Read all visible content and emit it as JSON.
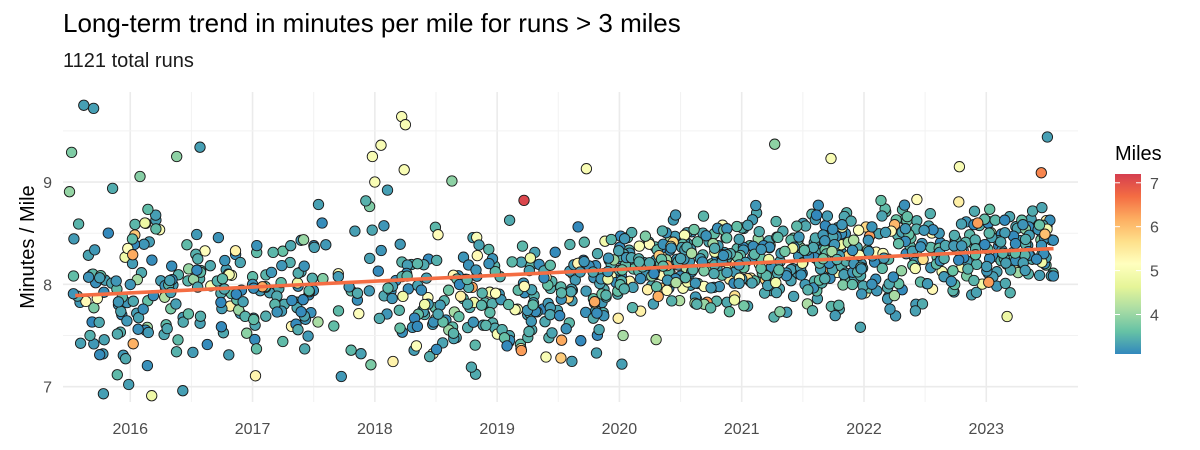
{
  "chart_data": {
    "type": "scatter",
    "title": "Long-term trend in minutes per mile for runs > 3 miles",
    "subtitle": "1121 total runs",
    "xlabel": "",
    "ylabel": "Minutes / Mile",
    "x_ticks": [
      "2016",
      "2017",
      "2018",
      "2019",
      "2020",
      "2021",
      "2022",
      "2023"
    ],
    "x_tick_values": [
      2016,
      2017,
      2018,
      2019,
      2020,
      2021,
      2022,
      2023
    ],
    "y_ticks": [
      "7",
      "8",
      "9"
    ],
    "y_tick_values": [
      7,
      8,
      9
    ],
    "xlim": [
      2015.45,
      2023.75
    ],
    "ylim": [
      6.85,
      9.88
    ],
    "grid": true,
    "legend": {
      "title": "Miles",
      "position": "right",
      "ticks": [
        "4",
        "5",
        "6",
        "7"
      ],
      "tick_values": [
        4,
        5,
        6,
        7
      ],
      "range": [
        3.1,
        7.2
      ],
      "colors": [
        "#3288bd",
        "#66c2a5",
        "#abdda4",
        "#e6f598",
        "#ffffbf",
        "#fee08b",
        "#fdae61",
        "#f46d43",
        "#d53e4f"
      ]
    },
    "trend_line": {
      "color": "#f46d43",
      "x": [
        2015.55,
        2023.55
      ],
      "y": [
        7.89,
        8.35
      ]
    },
    "point_count": 1121,
    "labeled_outliers": [
      {
        "x": 2015.62,
        "y": 9.75,
        "miles": 3.3
      },
      {
        "x": 2015.7,
        "y": 9.72,
        "miles": 3.3
      },
      {
        "x": 2015.52,
        "y": 9.29,
        "miles": 3.8
      },
      {
        "x": 2016.38,
        "y": 9.25,
        "miles": 3.9
      },
      {
        "x": 2016.57,
        "y": 9.34,
        "miles": 3.3
      },
      {
        "x": 2016.43,
        "y": 6.96,
        "miles": 3.3
      },
      {
        "x": 2015.78,
        "y": 6.93,
        "miles": 3.3
      },
      {
        "x": 2015.98,
        "y": 8.35,
        "miles": 5.1
      },
      {
        "x": 2016.02,
        "y": 8.29,
        "miles": 6.2
      },
      {
        "x": 2016.12,
        "y": 8.6,
        "miles": 4.8
      },
      {
        "x": 2018.22,
        "y": 9.64,
        "miles": 5.0
      },
      {
        "x": 2018.25,
        "y": 9.56,
        "miles": 5.0
      },
      {
        "x": 2018.05,
        "y": 9.36,
        "miles": 5.0
      },
      {
        "x": 2017.98,
        "y": 9.25,
        "miles": 5.0
      },
      {
        "x": 2018.24,
        "y": 9.12,
        "miles": 5.0
      },
      {
        "x": 2018.0,
        "y": 9.0,
        "miles": 5.0
      },
      {
        "x": 2018.63,
        "y": 9.01,
        "miles": 3.9
      },
      {
        "x": 2019.22,
        "y": 8.82,
        "miles": 7.1
      },
      {
        "x": 2019.73,
        "y": 9.13,
        "miles": 5.0
      },
      {
        "x": 2021.27,
        "y": 9.37,
        "miles": 3.9
      },
      {
        "x": 2021.73,
        "y": 9.23,
        "miles": 5.0
      },
      {
        "x": 2022.78,
        "y": 9.15,
        "miles": 5.0
      },
      {
        "x": 2022.93,
        "y": 8.6,
        "miles": 6.3
      },
      {
        "x": 2023.02,
        "y": 8.02,
        "miles": 6.3
      },
      {
        "x": 2023.45,
        "y": 9.09,
        "miles": 6.5
      },
      {
        "x": 2023.5,
        "y": 9.44,
        "miles": 3.3
      },
      {
        "x": 2019.4,
        "y": 7.29,
        "miles": 5.0
      },
      {
        "x": 2020.02,
        "y": 7.22,
        "miles": 3.3
      },
      {
        "x": 2020.03,
        "y": 7.5,
        "miles": 4.1
      },
      {
        "x": 2020.3,
        "y": 7.46,
        "miles": 4.2
      }
    ]
  }
}
